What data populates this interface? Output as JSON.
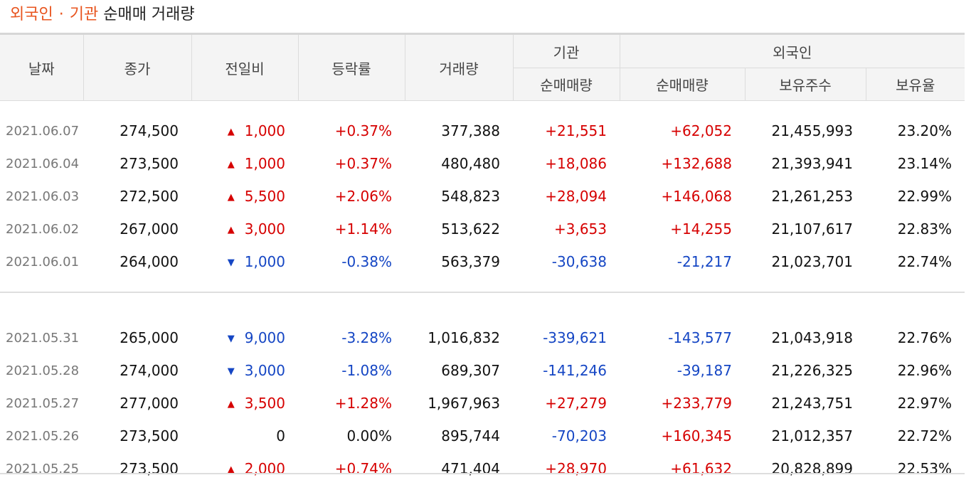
{
  "title": {
    "part1": "외국인",
    "dot": "·",
    "part2": "기관",
    "rest": "순매매 거래량"
  },
  "headers": {
    "date": "날짜",
    "close": "종가",
    "change": "전일비",
    "rate": "등락률",
    "volume": "거래량",
    "institution": "기관",
    "foreign": "외국인",
    "inst_net": "순매매량",
    "foreign_net": "순매매량",
    "holdings": "보유주수",
    "holding_ratio": "보유율"
  },
  "group1": [
    {
      "date": "2021.06.07",
      "close": "274,500",
      "dir": "up",
      "arrow": "▲",
      "change": "1,000",
      "rate": "+0.37%",
      "volume": "377,388",
      "inst": "+21,551",
      "inst_dir": "up",
      "foreign": "+62,052",
      "foreign_dir": "up",
      "holdings": "21,455,993",
      "ratio": "23.20%"
    },
    {
      "date": "2021.06.04",
      "close": "273,500",
      "dir": "up",
      "arrow": "▲",
      "change": "1,000",
      "rate": "+0.37%",
      "volume": "480,480",
      "inst": "+18,086",
      "inst_dir": "up",
      "foreign": "+132,688",
      "foreign_dir": "up",
      "holdings": "21,393,941",
      "ratio": "23.14%"
    },
    {
      "date": "2021.06.03",
      "close": "272,500",
      "dir": "up",
      "arrow": "▲",
      "change": "5,500",
      "rate": "+2.06%",
      "volume": "548,823",
      "inst": "+28,094",
      "inst_dir": "up",
      "foreign": "+146,068",
      "foreign_dir": "up",
      "holdings": "21,261,253",
      "ratio": "22.99%"
    },
    {
      "date": "2021.06.02",
      "close": "267,000",
      "dir": "up",
      "arrow": "▲",
      "change": "3,000",
      "rate": "+1.14%",
      "volume": "513,622",
      "inst": "+3,653",
      "inst_dir": "up",
      "foreign": "+14,255",
      "foreign_dir": "up",
      "holdings": "21,107,617",
      "ratio": "22.83%"
    },
    {
      "date": "2021.06.01",
      "close": "264,000",
      "dir": "down",
      "arrow": "▼",
      "change": "1,000",
      "rate": "-0.38%",
      "volume": "563,379",
      "inst": "-30,638",
      "inst_dir": "down",
      "foreign": "-21,217",
      "foreign_dir": "down",
      "holdings": "21,023,701",
      "ratio": "22.74%"
    }
  ],
  "group2": [
    {
      "date": "2021.05.31",
      "close": "265,000",
      "dir": "down",
      "arrow": "▼",
      "change": "9,000",
      "rate": "-3.28%",
      "volume": "1,016,832",
      "inst": "-339,621",
      "inst_dir": "down",
      "foreign": "-143,577",
      "foreign_dir": "down",
      "holdings": "21,043,918",
      "ratio": "22.76%"
    },
    {
      "date": "2021.05.28",
      "close": "274,000",
      "dir": "down",
      "arrow": "▼",
      "change": "3,000",
      "rate": "-1.08%",
      "volume": "689,307",
      "inst": "-141,246",
      "inst_dir": "down",
      "foreign": "-39,187",
      "foreign_dir": "down",
      "holdings": "21,226,325",
      "ratio": "22.96%"
    },
    {
      "date": "2021.05.27",
      "close": "277,000",
      "dir": "up",
      "arrow": "▲",
      "change": "3,500",
      "rate": "+1.28%",
      "volume": "1,967,963",
      "inst": "+27,279",
      "inst_dir": "up",
      "foreign": "+233,779",
      "foreign_dir": "up",
      "holdings": "21,243,751",
      "ratio": "22.97%"
    },
    {
      "date": "2021.05.26",
      "close": "273,500",
      "dir": "neutral",
      "arrow": "",
      "change": "0",
      "rate": "0.00%",
      "volume": "895,744",
      "inst": "-70,203",
      "inst_dir": "down",
      "foreign": "+160,345",
      "foreign_dir": "up",
      "holdings": "21,012,357",
      "ratio": "22.72%"
    },
    {
      "date": "2021.05.25",
      "close": "273,500",
      "dir": "up",
      "arrow": "▲",
      "change": "2,000",
      "rate": "+0.74%",
      "volume": "471,404",
      "inst": "+28,970",
      "inst_dir": "up",
      "foreign": "+61,632",
      "foreign_dir": "up",
      "holdings": "20,828,899",
      "ratio": "22.53%"
    }
  ],
  "colors": {
    "up": "#d60000",
    "down": "#1546c4",
    "accent": "#e8541e",
    "header_bg": "#f4f4f4"
  }
}
